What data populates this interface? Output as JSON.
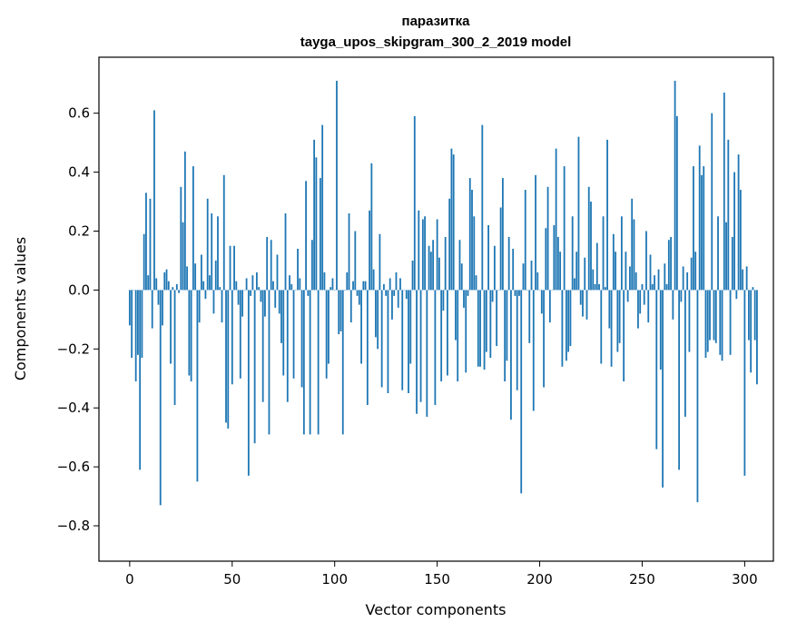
{
  "chart_data": {
    "type": "bar",
    "title_line1": "паразитка",
    "title_line2": "tayga_upos_skipgram_300_2_2019 model",
    "xlabel": "Vector components",
    "ylabel": "Components values",
    "xlim": [
      -15,
      314
    ],
    "ylim": [
      -0.92,
      0.79
    ],
    "xticks": [
      0,
      50,
      100,
      150,
      200,
      250,
      300
    ],
    "yticks": [
      -0.8,
      -0.6,
      -0.4,
      -0.2,
      0.0,
      0.2,
      0.4,
      0.6
    ],
    "ytick_labels": [
      "−0.8",
      "−0.6",
      "−0.4",
      "−0.2",
      "0.0",
      "0.2",
      "0.4",
      "0.6"
    ],
    "bar_color": "#1f77b4",
    "values": [
      -0.12,
      -0.23,
      0.0,
      -0.31,
      -0.22,
      -0.61,
      -0.23,
      0.19,
      0.33,
      0.05,
      0.31,
      -0.13,
      0.61,
      0.04,
      -0.05,
      -0.73,
      -0.12,
      0.06,
      0.07,
      0.03,
      -0.25,
      0.01,
      -0.39,
      0.02,
      -0.01,
      0.35,
      0.23,
      0.47,
      0.08,
      -0.29,
      -0.31,
      0.42,
      0.09,
      -0.65,
      -0.11,
      0.12,
      0.03,
      -0.03,
      0.31,
      0.05,
      0.26,
      -0.08,
      0.1,
      0.25,
      0.01,
      -0.11,
      0.39,
      -0.45,
      -0.47,
      0.15,
      -0.32,
      0.15,
      0.03,
      -0.05,
      -0.3,
      -0.09,
      0.0,
      0.04,
      -0.63,
      -0.02,
      0.05,
      -0.52,
      0.06,
      0.01,
      -0.04,
      -0.38,
      -0.09,
      0.18,
      -0.49,
      0.17,
      0.03,
      -0.06,
      0.12,
      -0.08,
      -0.18,
      -0.29,
      0.26,
      -0.38,
      0.05,
      0.02,
      -0.3,
      0.0,
      0.14,
      0.04,
      -0.33,
      -0.49,
      0.37,
      -0.02,
      -0.49,
      0.17,
      0.51,
      0.45,
      -0.49,
      0.38,
      0.56,
      0.06,
      -0.3,
      -0.25,
      0.01,
      0.04,
      0.0,
      0.71,
      -0.15,
      -0.14,
      -0.49,
      0.0,
      0.06,
      0.26,
      -0.11,
      0.03,
      0.2,
      -0.02,
      -0.05,
      -0.25,
      0.03,
      0.03,
      -0.39,
      0.27,
      0.43,
      0.07,
      -0.16,
      -0.2,
      0.19,
      -0.33,
      0.02,
      -0.02,
      -0.35,
      0.04,
      -0.1,
      -0.02,
      0.06,
      -0.06,
      0.04,
      -0.34,
      0.0,
      -0.03,
      -0.35,
      -0.25,
      0.1,
      0.59,
      -0.42,
      0.27,
      -0.38,
      0.24,
      0.25,
      -0.43,
      0.15,
      0.13,
      0.17,
      -0.39,
      0.24,
      0.11,
      -0.31,
      -0.07,
      0.18,
      -0.29,
      0.31,
      0.48,
      0.46,
      -0.17,
      -0.31,
      0.17,
      0.09,
      -0.06,
      -0.28,
      -0.02,
      0.38,
      0.34,
      0.25,
      0.05,
      -0.26,
      -0.26,
      0.56,
      -0.27,
      -0.21,
      0.22,
      -0.23,
      -0.04,
      0.15,
      -0.19,
      0.0,
      0.28,
      0.38,
      -0.31,
      -0.24,
      0.18,
      -0.44,
      0.14,
      -0.02,
      -0.34,
      -0.02,
      -0.69,
      0.09,
      0.34,
      0.0,
      -0.18,
      0.1,
      -0.41,
      0.39,
      0.06,
      0.0,
      -0.08,
      -0.33,
      0.21,
      0.35,
      -0.11,
      0.0,
      0.22,
      0.48,
      0.18,
      0.13,
      -0.26,
      0.42,
      -0.24,
      -0.21,
      -0.19,
      0.25,
      0.04,
      0.13,
      0.52,
      -0.05,
      -0.09,
      0.11,
      -0.1,
      0.35,
      0.3,
      0.07,
      0.02,
      0.16,
      0.02,
      -0.25,
      0.25,
      0.01,
      0.51,
      -0.13,
      -0.26,
      0.19,
      0.13,
      -0.21,
      -0.18,
      0.25,
      -0.31,
      0.13,
      -0.04,
      0.08,
      0.31,
      0.24,
      0.06,
      -0.13,
      -0.08,
      0.02,
      -0.05,
      0.2,
      -0.11,
      0.12,
      0.02,
      0.05,
      -0.54,
      0.07,
      -0.27,
      -0.67,
      0.09,
      0.02,
      0.17,
      0.18,
      -0.1,
      0.71,
      0.59,
      -0.61,
      -0.04,
      0.08,
      -0.43,
      0.06,
      -0.21,
      0.11,
      0.42,
      0.13,
      -0.72,
      0.49,
      0.39,
      0.42,
      -0.23,
      -0.21,
      -0.17,
      0.6,
      -0.17,
      -0.18,
      0.25,
      -0.22,
      -0.24,
      0.67,
      0.23,
      0.51,
      -0.22,
      0.18,
      0.4,
      -0.03,
      0.46,
      0.34,
      0.07,
      -0.63,
      0.08,
      -0.17,
      -0.28,
      0.01,
      -0.17,
      -0.32
    ]
  }
}
